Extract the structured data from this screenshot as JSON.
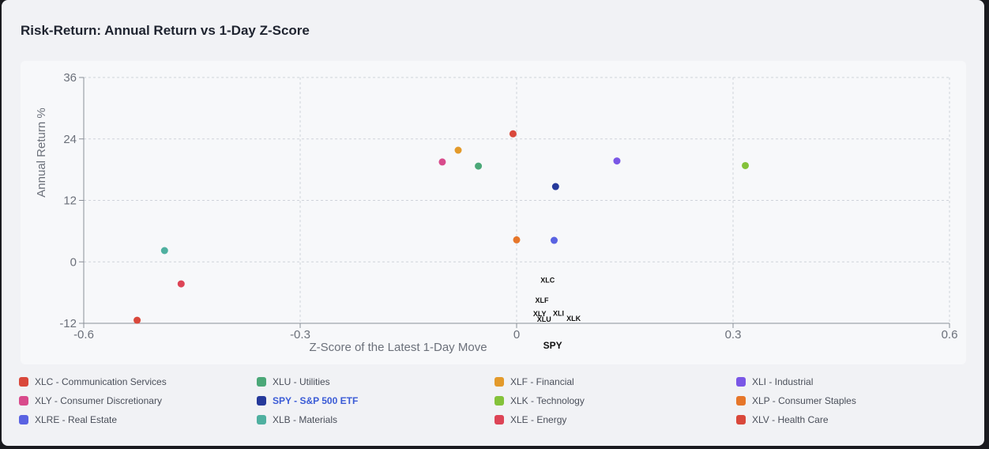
{
  "title": "Risk-Return: Annual Return vs 1-Day Z-Score",
  "chart_data": {
    "type": "scatter",
    "title": "Risk-Return: Annual Return vs 1-Day Z-Score",
    "xlabel": "Z-Score of the Latest 1-Day Move",
    "ylabel": "Annual Return %",
    "xlim": [
      -0.6,
      0.6
    ],
    "ylim": [
      -12,
      36
    ],
    "xticks": [
      "-0.6",
      "-0.3",
      "0",
      "0.3",
      "0.6"
    ],
    "yticks": [
      "36",
      "24",
      "12",
      "0",
      "-12"
    ],
    "grid": true,
    "points": [
      {
        "x": -0.005,
        "y": 25.0,
        "color": "#d9483b"
      },
      {
        "x": -0.081,
        "y": 21.8,
        "color": "#e39a2b"
      },
      {
        "x": -0.103,
        "y": 19.5,
        "color": "#d84b8c"
      },
      {
        "x": -0.053,
        "y": 18.7,
        "color": "#4ba878"
      },
      {
        "x": 0.139,
        "y": 19.7,
        "color": "#7a57e6"
      },
      {
        "x": 0.317,
        "y": 18.8,
        "color": "#84c23a"
      },
      {
        "x": 0.054,
        "y": 14.7,
        "color": "#263a9b"
      },
      {
        "x": 0.0,
        "y": 4.3,
        "color": "#e6762a"
      },
      {
        "x": 0.052,
        "y": 4.2,
        "color": "#5a63e2"
      },
      {
        "x": -0.488,
        "y": 2.2,
        "color": "#4fb0a0"
      },
      {
        "x": -0.465,
        "y": -4.3,
        "color": "#dd4456"
      },
      {
        "x": -0.526,
        "y": -11.4,
        "color": "#d9483b"
      }
    ],
    "annotations": [
      {
        "text": "XLC",
        "x": 0.043,
        "y": -3.4
      },
      {
        "text": "XLF",
        "x": 0.035,
        "y": -7.4
      },
      {
        "text": "XLY",
        "x": 0.032,
        "y": -10.0
      },
      {
        "text": "XLI",
        "x": 0.058,
        "y": -9.9
      },
      {
        "text": "XLU",
        "x": 0.038,
        "y": -11.1
      },
      {
        "text": "XLK",
        "x": 0.079,
        "y": -10.9
      },
      {
        "text": "SPY",
        "x": 0.05,
        "y": -16.3
      }
    ]
  },
  "legend": [
    {
      "label": "XLC - Communication Services",
      "color": "#d9483b"
    },
    {
      "label": "XLU - Utilities",
      "color": "#4ba878"
    },
    {
      "label": "XLF - Financial",
      "color": "#e39a2b"
    },
    {
      "label": "XLI - Industrial",
      "color": "#7a57e6"
    },
    {
      "label": "XLY - Consumer Discretionary",
      "color": "#d84b8c"
    },
    {
      "label": "SPY - S&P 500 ETF",
      "color": "#263a9b",
      "highlight": true
    },
    {
      "label": "XLK - Technology",
      "color": "#84c23a"
    },
    {
      "label": "XLP - Consumer Staples",
      "color": "#e6762a"
    },
    {
      "label": "XLRE - Real Estate",
      "color": "#5a63e2"
    },
    {
      "label": "XLB - Materials",
      "color": "#4fb0a0"
    },
    {
      "label": "XLE - Energy",
      "color": "#dd4456"
    },
    {
      "label": "XLV - Health Care",
      "color": "#d9483b"
    }
  ]
}
